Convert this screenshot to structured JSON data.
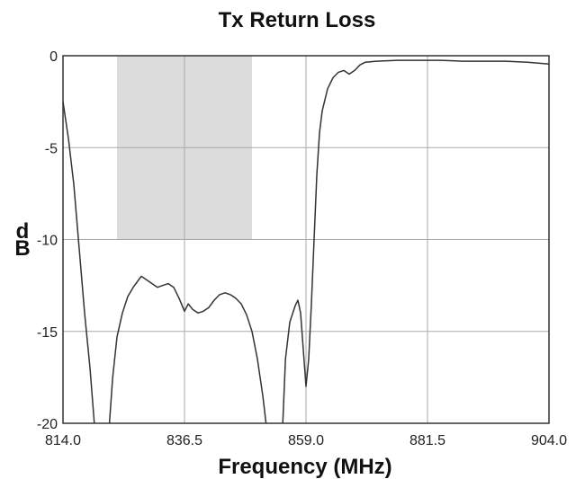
{
  "chart_data": {
    "type": "line",
    "title": "Tx Return Loss",
    "xlabel": "Frequency (MHz)",
    "ylabel": "dB",
    "xlim": [
      814.0,
      904.0
    ],
    "ylim": [
      -20,
      0
    ],
    "x_ticks": [
      {
        "value": 814.0,
        "label": "814.0"
      },
      {
        "value": 836.5,
        "label": "836.5"
      },
      {
        "value": 859.0,
        "label": "859.0"
      },
      {
        "value": 881.5,
        "label": "881.5"
      },
      {
        "value": 904.0,
        "label": "904.0"
      }
    ],
    "y_ticks": [
      {
        "value": 0,
        "label": "0"
      },
      {
        "value": -5,
        "label": "-5"
      },
      {
        "value": -10,
        "label": "-10"
      },
      {
        "value": -15,
        "label": "-15"
      },
      {
        "value": -20,
        "label": "-20"
      }
    ],
    "grid": true,
    "legend": "none",
    "shaded_region": {
      "x": [
        824.0,
        849.0
      ],
      "y": [
        -10,
        0
      ],
      "color": "#dcdcdc"
    },
    "series": [
      {
        "color": "#333333",
        "segments": [
          [
            [
              814.0,
              -2.5
            ],
            [
              815.0,
              -4.5
            ],
            [
              816.0,
              -7.0
            ],
            [
              817.0,
              -10.5
            ],
            [
              818.0,
              -14.0
            ],
            [
              819.0,
              -17.0
            ],
            [
              819.8,
              -20.0
            ]
          ],
          [
            [
              822.6,
              -20.0
            ],
            [
              823.2,
              -17.5
            ],
            [
              824.0,
              -15.3
            ],
            [
              825.0,
              -14.0
            ],
            [
              826.0,
              -13.1
            ],
            [
              827.0,
              -12.6
            ],
            [
              828.0,
              -12.2
            ],
            [
              828.5,
              -12.0
            ],
            [
              829.5,
              -12.2
            ],
            [
              830.5,
              -12.4
            ],
            [
              831.5,
              -12.6
            ],
            [
              832.5,
              -12.5
            ],
            [
              833.5,
              -12.4
            ],
            [
              834.5,
              -12.6
            ],
            [
              835.5,
              -13.2
            ],
            [
              836.5,
              -13.9
            ],
            [
              837.2,
              -13.5
            ],
            [
              838.0,
              -13.8
            ],
            [
              839.0,
              -14.0
            ],
            [
              840.0,
              -13.9
            ],
            [
              841.0,
              -13.7
            ],
            [
              842.0,
              -13.3
            ],
            [
              843.0,
              -13.0
            ],
            [
              844.0,
              -12.9
            ],
            [
              845.0,
              -13.0
            ],
            [
              846.0,
              -13.2
            ],
            [
              847.0,
              -13.5
            ],
            [
              848.0,
              -14.1
            ],
            [
              849.0,
              -15.0
            ],
            [
              850.0,
              -16.5
            ],
            [
              851.0,
              -18.5
            ],
            [
              851.6,
              -20.0
            ]
          ],
          [
            [
              854.7,
              -20.0
            ],
            [
              855.2,
              -16.5
            ],
            [
              856.0,
              -14.5
            ],
            [
              857.0,
              -13.6
            ],
            [
              857.5,
              -13.3
            ],
            [
              858.0,
              -14.0
            ],
            [
              858.5,
              -16.0
            ],
            [
              859.0,
              -18.0
            ],
            [
              859.5,
              -16.5
            ],
            [
              860.0,
              -13.5
            ],
            [
              860.5,
              -10.0
            ],
            [
              861.0,
              -6.5
            ],
            [
              861.5,
              -4.2
            ],
            [
              862.0,
              -3.0
            ],
            [
              863.0,
              -1.8
            ],
            [
              864.0,
              -1.2
            ],
            [
              865.0,
              -0.9
            ],
            [
              866.0,
              -0.8
            ],
            [
              867.0,
              -1.0
            ],
            [
              868.0,
              -0.8
            ],
            [
              869.0,
              -0.5
            ],
            [
              870.0,
              -0.35
            ],
            [
              872.0,
              -0.3
            ],
            [
              876.0,
              -0.25
            ],
            [
              880.0,
              -0.25
            ],
            [
              884.0,
              -0.25
            ],
            [
              888.0,
              -0.3
            ],
            [
              892.0,
              -0.3
            ],
            [
              896.0,
              -0.3
            ],
            [
              900.0,
              -0.35
            ],
            [
              904.0,
              -0.45
            ]
          ]
        ]
      }
    ]
  }
}
